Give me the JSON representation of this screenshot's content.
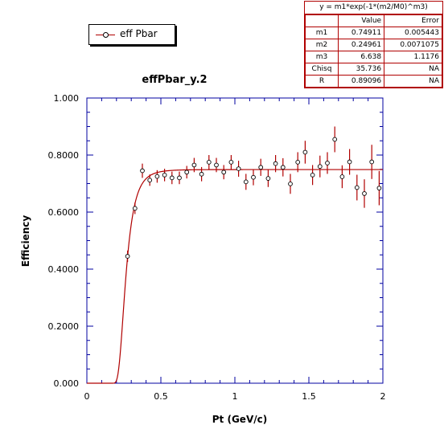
{
  "legend": {
    "label": "eff Pbar"
  },
  "fit_box": {
    "formula": "y = m1*exp(-1*(m2/M0)^m3)",
    "headers": [
      "",
      "Value",
      "Error"
    ],
    "rows": [
      {
        "name": "m1",
        "value": "0.74911",
        "error": "0.005443"
      },
      {
        "name": "m2",
        "value": "0.24961",
        "error": "0.0071075"
      },
      {
        "name": "m3",
        "value": "6.638",
        "error": "1.1176"
      },
      {
        "name": "Chisq",
        "value": "35.736",
        "error": "NA"
      },
      {
        "name": "R",
        "value": "0.89096",
        "error": "NA"
      }
    ]
  },
  "chart_data": {
    "type": "scatter",
    "title": "effPbar_y.2",
    "xlabel": "Pt (GeV/c)",
    "ylabel": "Efficiency",
    "xlim": [
      0,
      2
    ],
    "ylim": [
      0,
      1
    ],
    "xticks": [
      "0",
      "0.5",
      "1",
      "1.5",
      "2"
    ],
    "xtick_values": [
      0,
      0.5,
      1,
      1.5,
      2
    ],
    "yticks": [
      "0.000",
      "0.2000",
      "0.4000",
      "0.6000",
      "0.8000",
      "1.000"
    ],
    "ytick_values": [
      0,
      0.2,
      0.4,
      0.6,
      0.8,
      1.0
    ],
    "series": [
      {
        "name": "eff Pbar",
        "x": [
          0.275,
          0.325,
          0.375,
          0.425,
          0.475,
          0.525,
          0.575,
          0.625,
          0.675,
          0.725,
          0.775,
          0.825,
          0.875,
          0.925,
          0.975,
          1.025,
          1.075,
          1.125,
          1.175,
          1.225,
          1.275,
          1.325,
          1.375,
          1.425,
          1.475,
          1.525,
          1.575,
          1.625,
          1.675,
          1.725,
          1.775,
          1.825,
          1.875,
          1.925,
          1.975
        ],
        "y": [
          0.445,
          0.613,
          0.745,
          0.712,
          0.725,
          0.73,
          0.72,
          0.72,
          0.74,
          0.765,
          0.733,
          0.775,
          0.765,
          0.74,
          0.775,
          0.752,
          0.706,
          0.722,
          0.757,
          0.718,
          0.77,
          0.757,
          0.699,
          0.775,
          0.81,
          0.73,
          0.76,
          0.772,
          0.855,
          0.724,
          0.776,
          0.686,
          0.665,
          0.776,
          0.684
        ],
        "err": [
          0.02,
          0.02,
          0.025,
          0.02,
          0.022,
          0.022,
          0.022,
          0.022,
          0.022,
          0.025,
          0.025,
          0.025,
          0.025,
          0.025,
          0.025,
          0.028,
          0.028,
          0.028,
          0.03,
          0.03,
          0.03,
          0.032,
          0.035,
          0.035,
          0.04,
          0.035,
          0.038,
          0.038,
          0.045,
          0.04,
          0.045,
          0.045,
          0.05,
          0.06,
          0.06
        ]
      }
    ],
    "fit": {
      "m1": 0.74911,
      "m2": 0.24961,
      "m3": 6.638
    },
    "colors": {
      "line": "#b00000",
      "axes": "#0000a0",
      "marker_edge": "#000000"
    },
    "grid": false,
    "legend_position": "top-left"
  }
}
